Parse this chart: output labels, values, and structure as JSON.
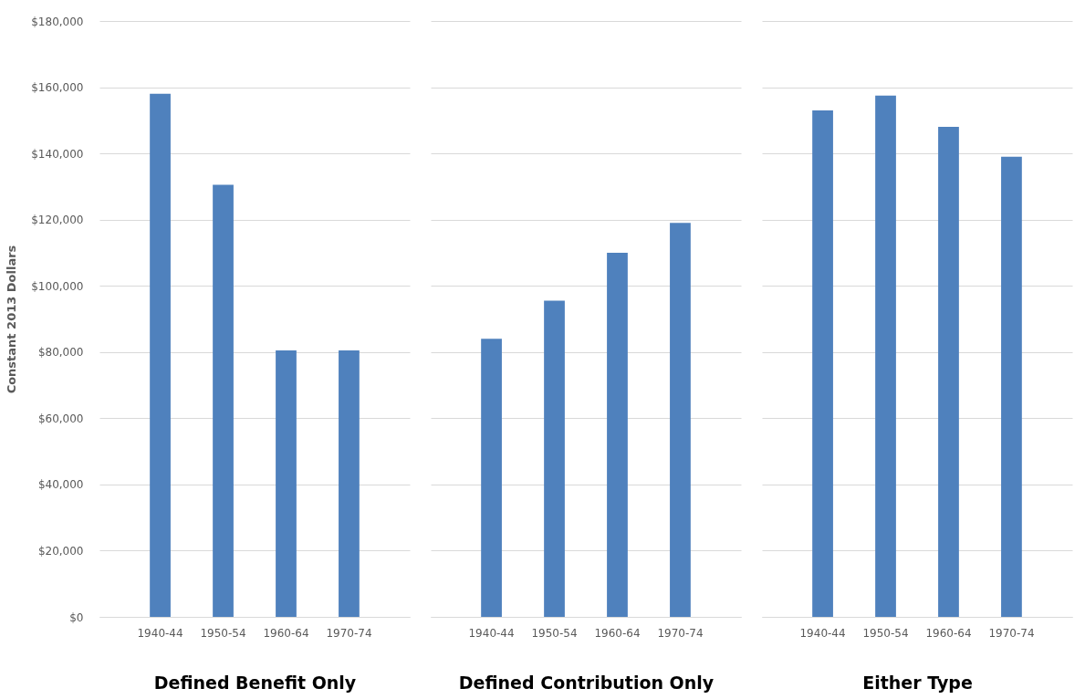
{
  "chart_data": [
    {
      "type": "bar",
      "xlabel": "Defined Benefit Only",
      "ylabel": "Constant 2013 Dollars",
      "categories": [
        "1940-44",
        "1950-54",
        "1960-64",
        "1970-74"
      ],
      "values": [
        158000,
        130500,
        80500,
        80500
      ],
      "color": "#4f81bd",
      "ylim": [
        0,
        180000
      ],
      "yticks": [
        {
          "value": 0,
          "label": "$0"
        },
        {
          "value": 20000,
          "label": "$20,000"
        },
        {
          "value": 40000,
          "label": "$40,000"
        },
        {
          "value": 60000,
          "label": "$60,000"
        },
        {
          "value": 80000,
          "label": "$80,000"
        },
        {
          "value": 100000,
          "label": "$100,000"
        },
        {
          "value": 120000,
          "label": "$120,000"
        },
        {
          "value": 140000,
          "label": "$140,000"
        },
        {
          "value": 160000,
          "label": "$160,000"
        },
        {
          "value": 180000,
          "label": "$180,000"
        }
      ],
      "grid": "y"
    },
    {
      "type": "bar",
      "xlabel": "Defined Contribution Only",
      "categories": [
        "1940-44",
        "1950-54",
        "1960-64",
        "1970-74"
      ],
      "values": [
        84000,
        95500,
        110000,
        119000
      ],
      "color": "#4f81bd",
      "ylim": [
        0,
        180000
      ],
      "yticks": [
        0,
        20000,
        40000,
        60000,
        80000,
        100000,
        120000,
        140000,
        160000,
        180000
      ],
      "grid": "y",
      "tick_labels": "x"
    },
    {
      "type": "bar",
      "xlabel": "Either Type",
      "categories": [
        "1940-44",
        "1950-54",
        "1960-64",
        "1970-74"
      ],
      "values": [
        153000,
        157500,
        148000,
        139000
      ],
      "color": "#4f81bd",
      "ylim": [
        0,
        180000
      ],
      "yticks": [
        0,
        20000,
        40000,
        60000,
        80000,
        100000,
        120000,
        140000,
        160000,
        180000
      ],
      "grid": "y",
      "tick_labels": "x"
    }
  ]
}
